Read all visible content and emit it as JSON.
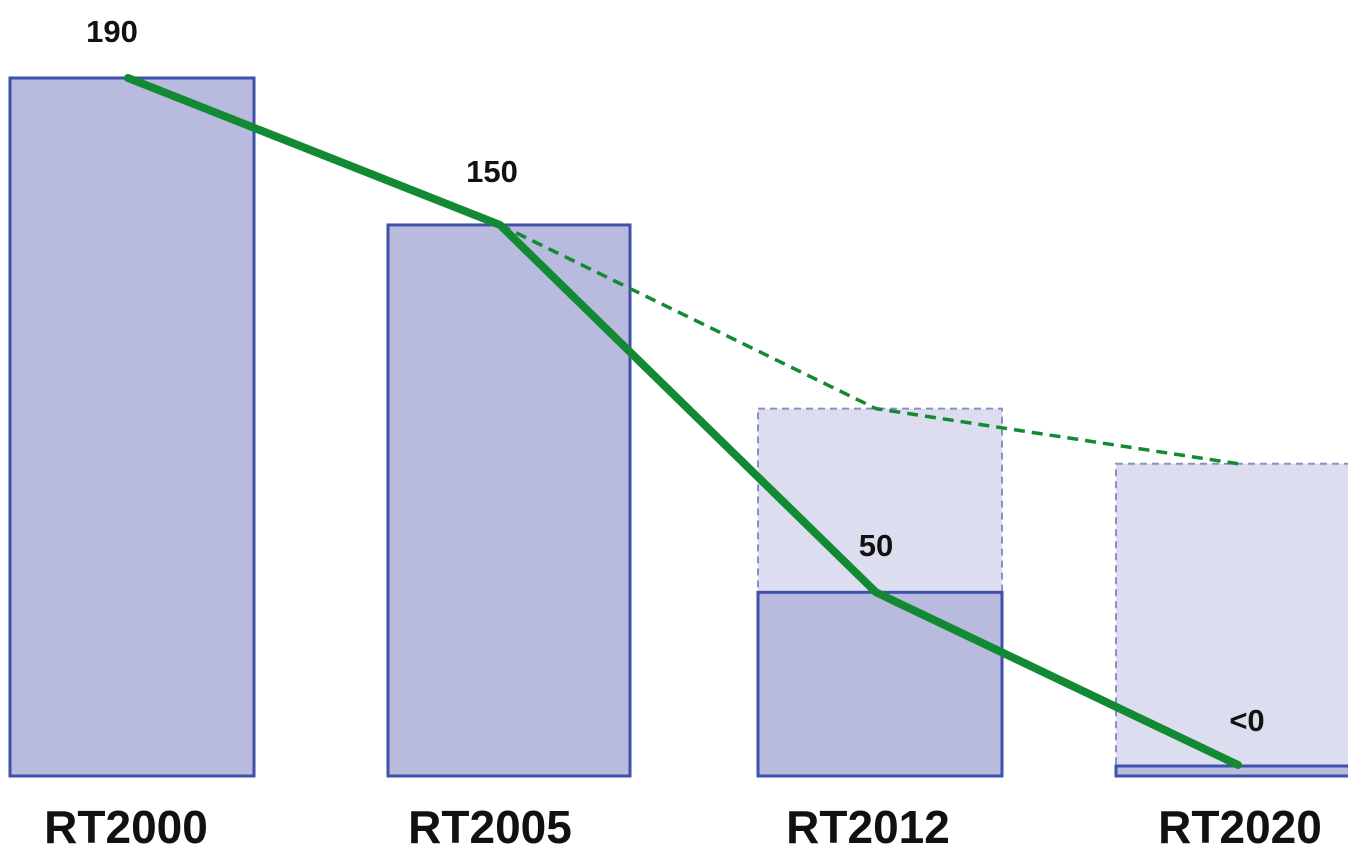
{
  "chart_data": {
    "type": "bar",
    "title": "",
    "xlabel": "",
    "ylabel": "",
    "categories": [
      "RT2000",
      "RT2005",
      "RT2012",
      "RT2020"
    ],
    "ylim": [
      0,
      190
    ],
    "grid": false,
    "legend": "none",
    "series": [
      {
        "values": [
          190,
          150,
          50,
          0
        ],
        "style": "bars + solid line"
      },
      {
        "values": [
          190,
          150,
          100,
          85
        ],
        "style": "dashed line + dashed light bars"
      }
    ],
    "data_labels": [
      "190",
      "150",
      "50",
      "<0"
    ],
    "colors": {
      "bar_fill": "#b8bade",
      "bar_stroke": "#3f51a8",
      "ghost_fill": "#dcdeef",
      "ghost_stroke": "#8a90c4",
      "line": "#128a33"
    }
  }
}
